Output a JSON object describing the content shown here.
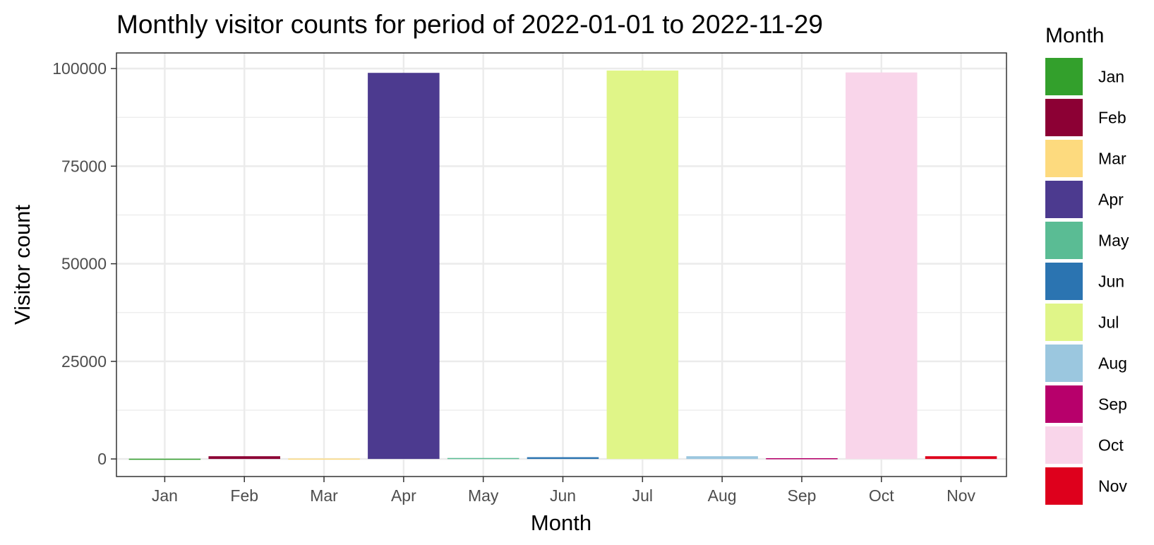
{
  "chart_data": {
    "type": "bar",
    "title": "Monthly visitor counts for period of 2022-01-01 to 2022-11-29",
    "xlabel": "Month",
    "ylabel": "Visitor count",
    "categories": [
      "Jan",
      "Feb",
      "Mar",
      "Apr",
      "May",
      "Jun",
      "Jul",
      "Aug",
      "Sep",
      "Oct",
      "Nov"
    ],
    "values": [
      60,
      700,
      100,
      98900,
      250,
      450,
      99500,
      700,
      200,
      99000,
      700
    ],
    "colors": [
      "#33a02c",
      "#8c0034",
      "#fdda7e",
      "#4c3a8f",
      "#5abc94",
      "#2b74b1",
      "#e0f588",
      "#9bc7df",
      "#b7006b",
      "#f9d5ea",
      "#de001c"
    ],
    "ylim": [
      -4500,
      104000
    ],
    "yticks": [
      0,
      25000,
      50000,
      75000,
      100000
    ],
    "grid": true,
    "legend": {
      "title": "Month",
      "position": "right",
      "items": [
        "Jan",
        "Feb",
        "Mar",
        "Apr",
        "May",
        "Jun",
        "Jul",
        "Aug",
        "Sep",
        "Oct",
        "Nov"
      ]
    }
  }
}
